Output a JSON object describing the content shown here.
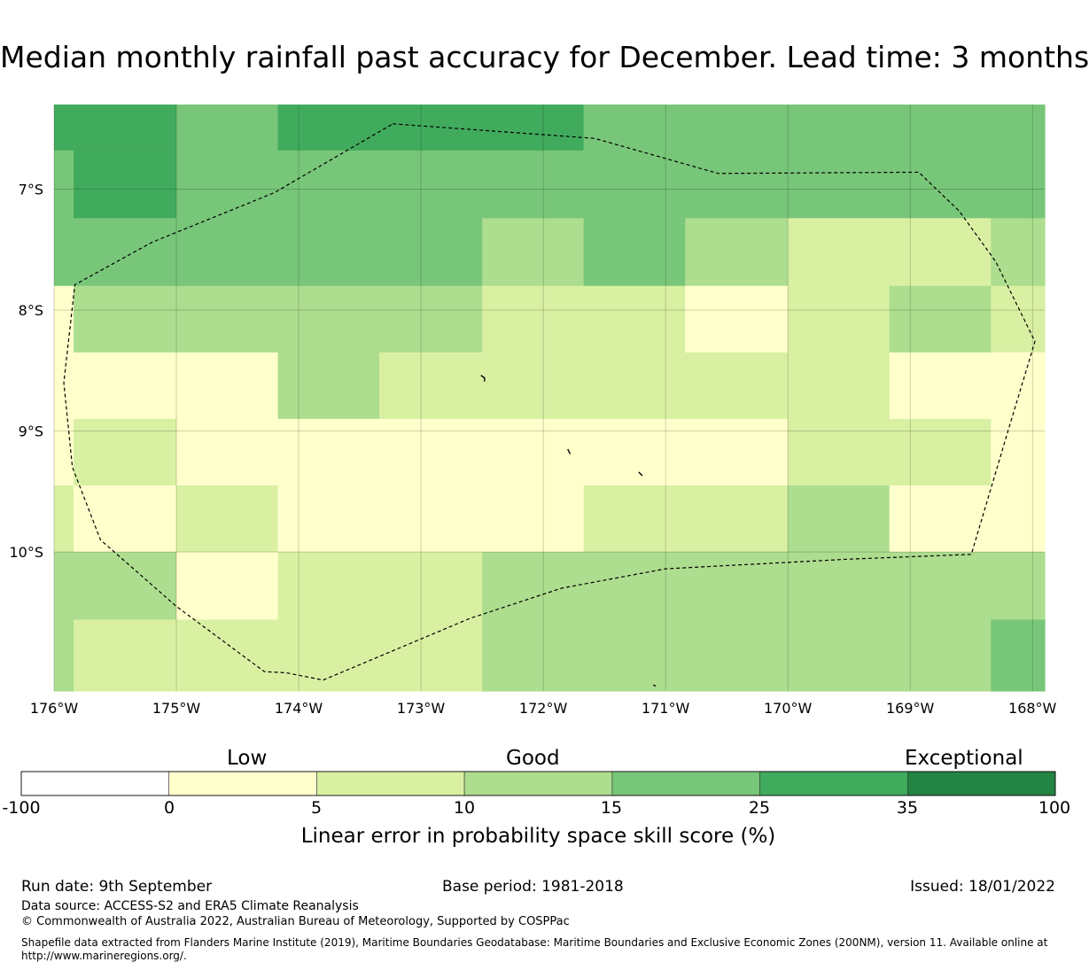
{
  "title": "Median monthly rainfall past accuracy for December. Lead time: 3 months",
  "map": {
    "extent": {
      "lon_min": -176.0,
      "lon_max": -167.9,
      "lat_top": -6.3,
      "lat_bottom": -11.15
    },
    "lat_ticks": [
      {
        "value": -7,
        "label": "7°S"
      },
      {
        "value": -8,
        "label": "8°S"
      },
      {
        "value": -9,
        "label": "9°S"
      },
      {
        "value": -10,
        "label": "10°S"
      }
    ],
    "lon_ticks": [
      {
        "value": -176,
        "label": "176°W"
      },
      {
        "value": -175,
        "label": "175°W"
      },
      {
        "value": -174,
        "label": "174°W"
      },
      {
        "value": -173,
        "label": "173°W"
      },
      {
        "value": -172,
        "label": "172°W"
      },
      {
        "value": -171,
        "label": "171°W"
      },
      {
        "value": -170,
        "label": "170°W"
      },
      {
        "value": -169,
        "label": "169°W"
      },
      {
        "value": -168,
        "label": "168°W"
      }
    ],
    "grid": true,
    "colors": [
      "#ffffff",
      "#ffffcc",
      "#d9f0a3",
      "#addd8e",
      "#78c679",
      "#41ab5d",
      "#238443"
    ],
    "cells": [
      {
        "lon0": -176.0,
        "lon1": -175.0,
        "lat0": -6.3,
        "lat1": -6.68,
        "c": 5
      },
      {
        "lon0": -176.0,
        "lon1": -175.84,
        "lat0": -6.68,
        "lat1": -7.8,
        "c": 4
      },
      {
        "lon0": -175.84,
        "lon1": -175.0,
        "lat0": -6.68,
        "lat1": -7.24,
        "c": 5
      },
      {
        "lon0": -175.84,
        "lon1": -175.0,
        "lat0": -7.24,
        "lat1": -7.8,
        "c": 4
      },
      {
        "lon0": -175.0,
        "lon1": -174.17,
        "lat0": -6.3,
        "lat1": -7.8,
        "c": 4
      },
      {
        "lon0": -174.17,
        "lon1": -171.67,
        "lat0": -6.3,
        "lat1": -6.68,
        "c": 5
      },
      {
        "lon0": -174.17,
        "lon1": -172.5,
        "lat0": -6.68,
        "lat1": -7.8,
        "c": 4
      },
      {
        "lon0": -172.5,
        "lon1": -171.67,
        "lat0": -6.68,
        "lat1": -7.24,
        "c": 4
      },
      {
        "lon0": -172.5,
        "lon1": -171.67,
        "lat0": -7.24,
        "lat1": -7.8,
        "c": 3
      },
      {
        "lon0": -171.67,
        "lon1": -167.9,
        "lat0": -6.3,
        "lat1": -7.24,
        "c": 4
      },
      {
        "lon0": -171.67,
        "lon1": -170.84,
        "lat0": -7.24,
        "lat1": -7.8,
        "c": 4
      },
      {
        "lon0": -170.84,
        "lon1": -170.0,
        "lat0": -7.24,
        "lat1": -7.8,
        "c": 3
      },
      {
        "lon0": -170.0,
        "lon1": -168.34,
        "lat0": -7.24,
        "lat1": -7.8,
        "c": 2
      },
      {
        "lon0": -168.34,
        "lon1": -167.9,
        "lat0": -7.24,
        "lat1": -7.8,
        "c": 3
      },
      {
        "lon0": -176.0,
        "lon1": -175.84,
        "lat0": -7.8,
        "lat1": -9.45,
        "c": 1
      },
      {
        "lon0": -175.84,
        "lon1": -172.5,
        "lat0": -7.8,
        "lat1": -8.35,
        "c": 3
      },
      {
        "lon0": -172.5,
        "lon1": -170.84,
        "lat0": -7.8,
        "lat1": -8.35,
        "c": 2
      },
      {
        "lon0": -170.84,
        "lon1": -170.0,
        "lat0": -7.8,
        "lat1": -8.35,
        "c": 1
      },
      {
        "lon0": -170.0,
        "lon1": -169.17,
        "lat0": -7.8,
        "lat1": -8.35,
        "c": 2
      },
      {
        "lon0": -169.17,
        "lon1": -168.34,
        "lat0": -7.8,
        "lat1": -8.35,
        "c": 3
      },
      {
        "lon0": -168.34,
        "lon1": -167.9,
        "lat0": -7.8,
        "lat1": -8.35,
        "c": 2
      },
      {
        "lon0": -175.84,
        "lon1": -174.17,
        "lat0": -8.35,
        "lat1": -8.9,
        "c": 1
      },
      {
        "lon0": -174.17,
        "lon1": -173.34,
        "lat0": -8.35,
        "lat1": -8.9,
        "c": 3
      },
      {
        "lon0": -173.34,
        "lon1": -169.17,
        "lat0": -8.35,
        "lat1": -8.9,
        "c": 2
      },
      {
        "lon0": -169.17,
        "lon1": -167.9,
        "lat0": -8.35,
        "lat1": -8.9,
        "c": 1
      },
      {
        "lon0": -175.84,
        "lon1": -175.0,
        "lat0": -8.9,
        "lat1": -9.45,
        "c": 2
      },
      {
        "lon0": -175.0,
        "lon1": -170.0,
        "lat0": -8.9,
        "lat1": -9.45,
        "c": 1
      },
      {
        "lon0": -170.0,
        "lon1": -168.34,
        "lat0": -8.9,
        "lat1": -9.45,
        "c": 2
      },
      {
        "lon0": -168.34,
        "lon1": -167.9,
        "lat0": -8.9,
        "lat1": -9.45,
        "c": 1
      },
      {
        "lon0": -176.0,
        "lon1": -175.84,
        "lat0": -9.45,
        "lat1": -10.0,
        "c": 2
      },
      {
        "lon0": -175.84,
        "lon1": -175.0,
        "lat0": -9.45,
        "lat1": -10.0,
        "c": 1
      },
      {
        "lon0": -175.0,
        "lon1": -174.17,
        "lat0": -9.45,
        "lat1": -10.0,
        "c": 2
      },
      {
        "lon0": -174.17,
        "lon1": -171.67,
        "lat0": -9.45,
        "lat1": -10.0,
        "c": 1
      },
      {
        "lon0": -171.67,
        "lon1": -170.0,
        "lat0": -9.45,
        "lat1": -10.0,
        "c": 2
      },
      {
        "lon0": -170.0,
        "lon1": -169.17,
        "lat0": -9.45,
        "lat1": -10.0,
        "c": 3
      },
      {
        "lon0": -169.17,
        "lon1": -167.9,
        "lat0": -9.45,
        "lat1": -10.0,
        "c": 1
      },
      {
        "lon0": -176.0,
        "lon1": -175.0,
        "lat0": -10.0,
        "lat1": -10.56,
        "c": 3
      },
      {
        "lon0": -175.0,
        "lon1": -174.17,
        "lat0": -10.0,
        "lat1": -10.56,
        "c": 1
      },
      {
        "lon0": -174.17,
        "lon1": -172.5,
        "lat0": -10.0,
        "lat1": -10.56,
        "c": 2
      },
      {
        "lon0": -172.5,
        "lon1": -167.9,
        "lat0": -10.0,
        "lat1": -10.56,
        "c": 3
      },
      {
        "lon0": -176.0,
        "lon1": -175.84,
        "lat0": -10.56,
        "lat1": -11.15,
        "c": 3
      },
      {
        "lon0": -175.84,
        "lon1": -172.5,
        "lat0": -10.56,
        "lat1": -11.15,
        "c": 2
      },
      {
        "lon0": -172.5,
        "lon1": -168.34,
        "lat0": -10.56,
        "lat1": -11.15,
        "c": 3
      },
      {
        "lon0": -168.34,
        "lon1": -167.9,
        "lat0": -10.56,
        "lat1": -11.15,
        "c": 4
      }
    ],
    "eez_boundary": [
      [
        -173.23,
        -6.46
      ],
      [
        -171.58,
        -6.58
      ],
      [
        -170.57,
        -6.87
      ],
      [
        -168.93,
        -6.86
      ],
      [
        -168.6,
        -7.18
      ],
      [
        -168.3,
        -7.6
      ],
      [
        -167.98,
        -8.26
      ],
      [
        -168.2,
        -9.0
      ],
      [
        -168.5,
        -10.02
      ],
      [
        -169.5,
        -10.06
      ],
      [
        -171.0,
        -10.14
      ],
      [
        -171.85,
        -10.3
      ],
      [
        -172.6,
        -10.55
      ],
      [
        -173.8,
        -11.06
      ],
      [
        -174.1,
        -11.0
      ],
      [
        -174.28,
        -10.99
      ],
      [
        -175.0,
        -10.45
      ],
      [
        -175.62,
        -9.9
      ],
      [
        -175.85,
        -9.3
      ],
      [
        -175.92,
        -8.6
      ],
      [
        -175.83,
        -7.79
      ],
      [
        -175.2,
        -7.44
      ],
      [
        -174.2,
        -7.03
      ],
      [
        -173.23,
        -6.46
      ]
    ],
    "islands": [
      [
        [
          -172.51,
          -8.54
        ],
        [
          -172.48,
          -8.56
        ],
        [
          -172.48,
          -8.59
        ]
      ],
      [
        [
          -171.8,
          -9.15
        ],
        [
          -171.78,
          -9.19
        ]
      ],
      [
        [
          -171.22,
          -9.34
        ],
        [
          -171.19,
          -9.37
        ]
      ],
      [
        [
          -171.1,
          -11.1
        ],
        [
          -171.08,
          -11.11
        ]
      ]
    ]
  },
  "colorbar": {
    "headings": [
      "Low",
      "Good",
      "Exceptional"
    ],
    "ticks": [
      "-100",
      "0",
      "5",
      "10",
      "15",
      "25",
      "35",
      "100"
    ],
    "label": "Linear error in probability space skill score (%)",
    "colors": [
      "#ffffff",
      "#ffffcc",
      "#d9f0a3",
      "#addd8e",
      "#78c679",
      "#41ab5d",
      "#238443"
    ]
  },
  "footer": {
    "run_date": "Run date: 9th September",
    "base_period": "Base period: 1981-2018",
    "issued": "Issued: 18/01/2022",
    "data_source": "Data source: ACCESS-S2 and ERA5 Climate Reanalysis",
    "copyright": "© Commonwealth of Australia 2022, Australian Bureau of Meteorology, Supported by COSPPac",
    "shapefile_line1": "Shapefile data extracted from Flanders Marine Institute (2019), Maritime Boundaries Geodatabase: Maritime Boundaries and Exclusive Economic Zones (200NM), version 11. Available online at",
    "shapefile_line2": "http://www.marineregions.org/."
  }
}
